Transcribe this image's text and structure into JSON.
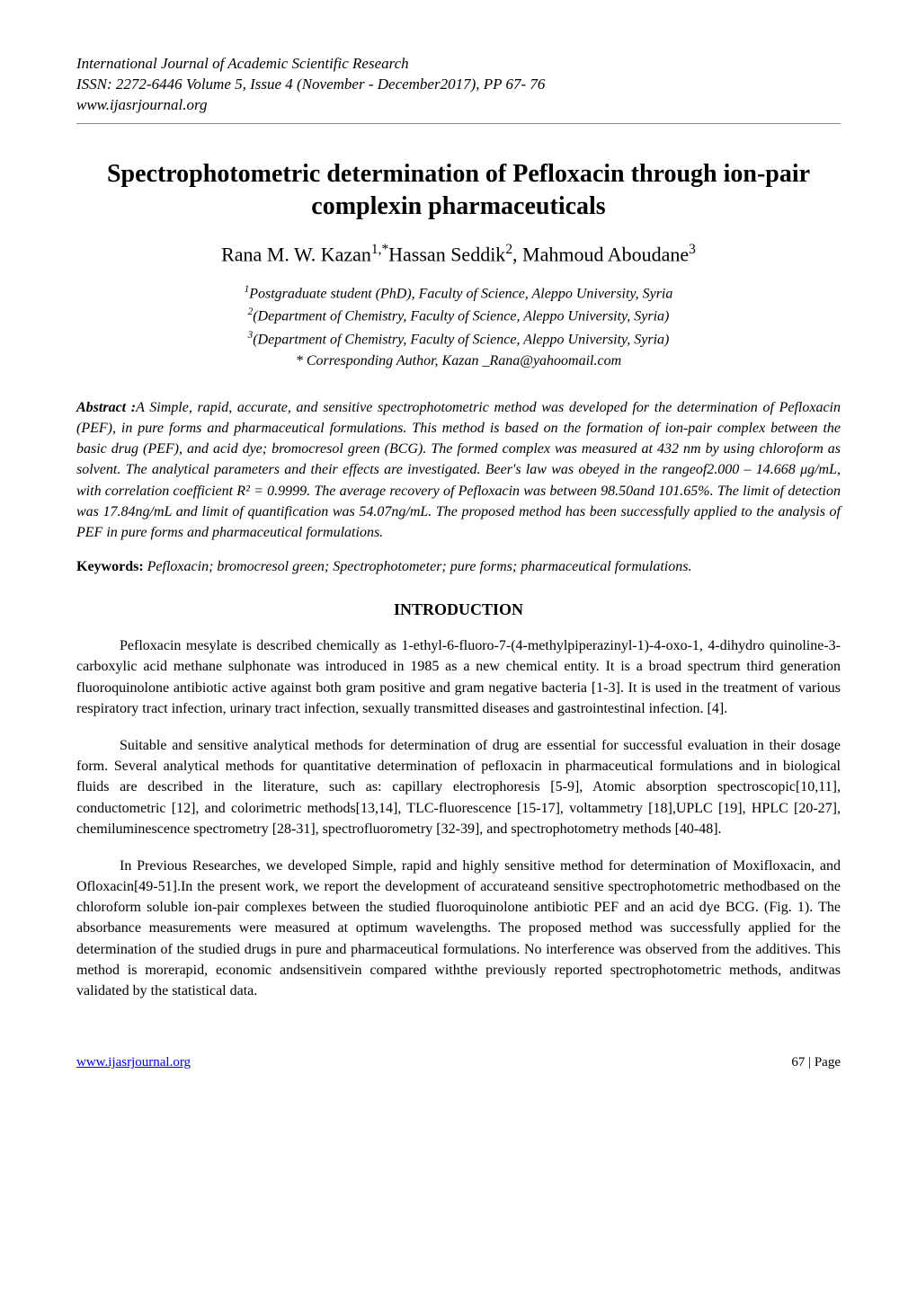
{
  "header": {
    "journal": "International Journal of Academic Scientific Research",
    "issn_line": "ISSN: 2272-6446 Volume 5, Issue 4 (November - December2017), PP 67- 76",
    "site": "www.ijasrjournal.org"
  },
  "title": "Spectrophotometric determination of Pefloxacin through ion-pair complexin pharmaceuticals",
  "authors_html": "Rana M. W. Kazan<sup>1,*</sup>Hassan Seddik<sup>2</sup>, Mahmoud Aboudane<sup>3</sup>",
  "affiliations": [
    "Postgraduate student (PhD), Faculty of Science, Aleppo University, Syria",
    "(Department of Chemistry, Faculty of Science, Aleppo University, Syria)",
    "(Department of Chemistry, Faculty of Science, Aleppo University, Syria)"
  ],
  "corresponding": "* Corresponding Author, Kazan _Rana@yahoomail.com",
  "abstract_label": "Abstract :",
  "abstract_text": "A Simple, rapid, accurate, and sensitive spectrophotometric method was developed for the determination of Pefloxacin (PEF), in pure forms and pharmaceutical formulations. This method is based on the formation of ion-pair complex between the basic drug (PEF), and acid dye; bromocresol green (BCG). The formed complex was measured at 432 nm by using chloroform as solvent. The analytical parameters and their effects are investigated. Beer's law was obeyed in the rangeof2.000 – 14.668 μg/mL, with correlation coefficient   R² = 0.9999. The average recovery of Pefloxacin was between 98.50and 101.65%. The limit of detection was 17.84ng/mL and limit of quantification was 54.07ng/mL. The proposed method has been successfully applied to the analysis of PEF in pure forms and pharmaceutical formulations.",
  "keywords_label": "Keywords:",
  "keywords_text": " Pefloxacin; bromocresol green; Spectrophotometer; pure forms; pharmaceutical formulations.",
  "section_heading": "INTRODUCTION",
  "paragraphs": [
    "Pefloxacin mesylate is described chemically as 1-ethyl-6-fluoro-7-(4-methylpiperazinyl-1)-4-oxo-1, 4-dihydro quinoline-3-carboxylic acid methane sulphonate was introduced in 1985 as a new chemical entity. It is a broad spectrum third generation fluoroquinolone antibiotic active against both gram positive and gram negative bacteria [1-3]. It is used in the treatment of various respiratory tract infection, urinary tract infection, sexually transmitted diseases and gastrointestinal infection. [4].",
    "Suitable and sensitive analytical methods for determination of drug are essential for successful evaluation in their dosage form. Several analytical methods for quantitative determination of pefloxacin in pharmaceutical formulations and in biological fluids are described in the literature, such as: capillary electrophoresis [5-9], Atomic absorption spectroscopic[10,11], conductometric [12], and colorimetric methods[13,14], TLC-fluorescence [15-17], voltammetry [18],UPLC [19], HPLC [20-27], chemiluminescence spectrometry [28-31], spectrofluorometry [32-39], and spectrophotometry methods [40-48].",
    "In Previous Researches, we developed Simple, rapid and highly sensitive method for determination of Moxifloxacin, and Ofloxacin[49-51].In the present work, we report the development of accurateand sensitive spectrophotometric methodbased on the chloroform soluble ion-pair complexes between the studied fluoroquinolone antibiotic PEF and an acid dye BCG. (Fig. 1). The absorbance measurements were measured at optimum wavelengths. The proposed method was successfully applied for the determination of the studied drugs in pure and pharmaceutical formulations. No interference was observed from the additives. This method is morerapid, economic andsensitivein compared withthe previously reported spectrophotometric methods, anditwas validated by the statistical data."
  ],
  "footer": {
    "link_text": "www.ijasrjournal.org",
    "page": "67 | Page"
  }
}
